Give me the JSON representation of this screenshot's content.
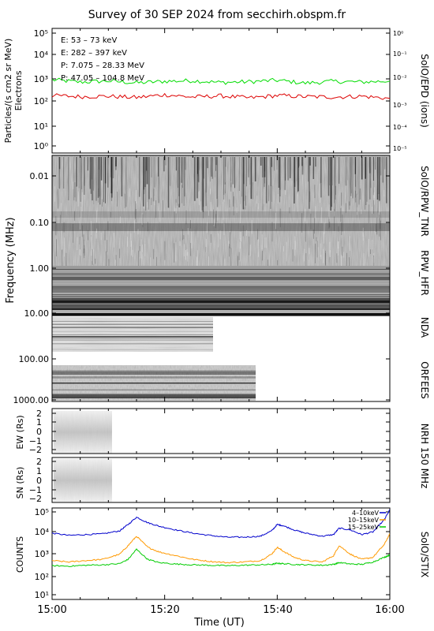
{
  "title": "Survey of 30 SEP 2024 from secchirh.obspm.fr",
  "x_axis": {
    "label": "Time (UT)",
    "ticks": [
      "15:00",
      "15:20",
      "15:40",
      "16:00"
    ],
    "range_minutes": [
      0,
      60
    ]
  },
  "panels": {
    "epd": {
      "ylabel_1": "Particles/(s cm2 sr MeV)",
      "ylabel_2": "Electrons",
      "right_label": "SolO/EPD (ions)",
      "left_ticks": [
        "10⁰",
        "10¹",
        "10²",
        "10³",
        "10⁴",
        "10⁵"
      ],
      "right_ticks": [
        "10⁻⁵",
        "10⁻⁴",
        "10⁻³",
        "10⁻²",
        "10⁻¹",
        "10⁰"
      ],
      "legend": [
        {
          "text": "E: 53 – 73 keV",
          "color": "#00dd00"
        },
        {
          "text": "E: 282 – 397 keV",
          "color": "#dd0000"
        },
        {
          "text": "P: 7.075 – 28.33 MeV",
          "color": "#000000"
        },
        {
          "text": "P: 47.05 – 104.8 MeV",
          "color": "#0000cc"
        }
      ]
    },
    "radio": {
      "ylabel": "Frequency (MHz)",
      "ticks": [
        "0.01",
        "0.10",
        "1.00",
        "10.00",
        "100.00",
        "1000.00"
      ],
      "instruments": [
        "SolO/RPW_TNR",
        "RPW_HFR",
        "NDA",
        "ORFEES"
      ]
    },
    "nrh_ew": {
      "ylabel": "EW (Rs)",
      "ticks": [
        "2",
        "1",
        "0",
        "−1",
        "−2"
      ],
      "range": [
        -2.4,
        2.4
      ]
    },
    "nrh_sn": {
      "ylabel": "SN (Rs)",
      "ticks": [
        "2",
        "1",
        "0",
        "−1",
        "−2"
      ],
      "range": [
        -2.4,
        2.4
      ]
    },
    "nrh_label": "NRH 150 MHz",
    "stix": {
      "ylabel": "COUNTS",
      "right_label": "SolO/STIX",
      "ticks": [
        "10¹",
        "10²",
        "10³",
        "10⁴",
        "10⁵"
      ],
      "legend": [
        {
          "text": "4–10keV",
          "color": "#0000cc"
        },
        {
          "text": "10–15keV",
          "color": "#ff9900"
        },
        {
          "text": "15–25keV",
          "color": "#00cc00"
        }
      ]
    }
  },
  "chart_data": [
    {
      "type": "line",
      "title": "",
      "ylabel": "Particles/(s cm2 sr MeV) Electrons",
      "yscale": "log",
      "ylim": [
        0.5,
        100000
      ],
      "x_unit": "minutes after 15:00 UT",
      "series": [
        {
          "name": "E: 53 – 73 keV",
          "color": "#00dd00",
          "x": [
            0,
            5,
            10,
            15,
            20,
            25,
            30,
            35,
            40,
            45,
            50,
            55,
            60
          ],
          "y": [
            650,
            520,
            580,
            480,
            560,
            600,
            500,
            540,
            620,
            470,
            560,
            520,
            580
          ]
        },
        {
          "name": "E: 282 – 397 keV",
          "color": "#dd0000",
          "x": [
            0,
            5,
            10,
            15,
            20,
            25,
            30,
            35,
            40,
            45,
            50,
            55,
            60
          ],
          "y": [
            140,
            125,
            130,
            115,
            150,
            120,
            135,
            110,
            140,
            125,
            120,
            130,
            105
          ]
        }
      ]
    },
    {
      "type": "line",
      "title": "",
      "ylabel": "COUNTS",
      "yscale": "log",
      "ylim": [
        5,
        110000
      ],
      "x_unit": "minutes after 15:00 UT",
      "series": [
        {
          "name": "4–10keV",
          "color": "#0000cc",
          "x": [
            0,
            3,
            6,
            9,
            12,
            13.5,
            15,
            17,
            19,
            22,
            25,
            28,
            31,
            34,
            37,
            39,
            40,
            41,
            43,
            45,
            48,
            50,
            51,
            53,
            55,
            57,
            59,
            60
          ],
          "y": [
            7000,
            5500,
            6000,
            6500,
            9000,
            18000,
            40000,
            22000,
            15000,
            10000,
            7000,
            5500,
            4500,
            4500,
            5000,
            9000,
            18000,
            16000,
            10000,
            7000,
            5000,
            6000,
            12000,
            10000,
            6000,
            8000,
            30000,
            90000
          ]
        },
        {
          "name": "10–15keV",
          "color": "#ff9900",
          "x": [
            0,
            3,
            6,
            9,
            12,
            13.5,
            15,
            17,
            19,
            22,
            25,
            28,
            31,
            34,
            37,
            39,
            40,
            41,
            43,
            45,
            48,
            50,
            51,
            53,
            55,
            57,
            59,
            60
          ],
          "y": [
            350,
            300,
            350,
            400,
            700,
            1800,
            5000,
            1500,
            900,
            600,
            400,
            320,
            280,
            300,
            350,
            700,
            1500,
            1000,
            500,
            350,
            300,
            600,
            1800,
            700,
            400,
            500,
            2000,
            6500
          ]
        },
        {
          "name": "15–25keV",
          "color": "#00cc00",
          "x": [
            0,
            3,
            6,
            9,
            12,
            13.5,
            15,
            17,
            19,
            22,
            25,
            28,
            31,
            34,
            37,
            39,
            40,
            41,
            43,
            45,
            48,
            50,
            51,
            53,
            55,
            57,
            59,
            60
          ],
          "y": [
            200,
            190,
            210,
            220,
            250,
            400,
            1200,
            400,
            280,
            240,
            220,
            210,
            200,
            210,
            220,
            230,
            260,
            250,
            230,
            220,
            210,
            230,
            280,
            240,
            230,
            300,
            500,
            650
          ]
        }
      ]
    }
  ]
}
